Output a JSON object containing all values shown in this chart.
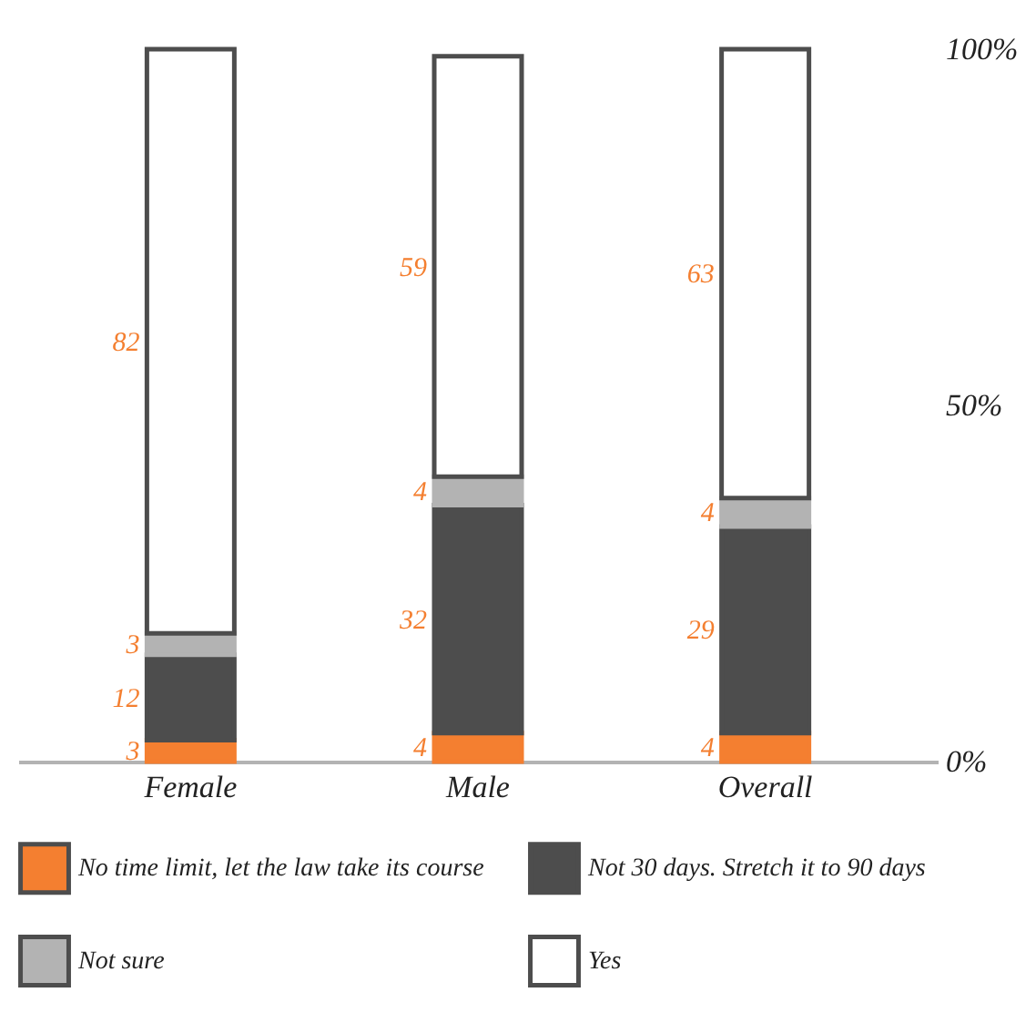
{
  "chart_data": {
    "type": "bar",
    "stacked": true,
    "categories": [
      "Female",
      "Male",
      "Overall"
    ],
    "series": [
      {
        "name": "No time limit, let the law take its course",
        "color": "#f47f30",
        "values": [
          3,
          4,
          4
        ]
      },
      {
        "name": "Not 30 days. Stretch it to 90 days",
        "color": "#4d4d4d",
        "values": [
          12,
          32,
          29
        ]
      },
      {
        "name": "Not sure",
        "color": "#b3b3b3",
        "values": [
          3,
          4,
          4
        ]
      },
      {
        "name": "Yes",
        "color": "#ffffff",
        "values": [
          82,
          59,
          63
        ]
      }
    ],
    "ylim": [
      0,
      100
    ],
    "yticks": [
      {
        "value": 0,
        "label": "0%"
      },
      {
        "value": 50,
        "label": "50%"
      },
      {
        "value": 100,
        "label": "100%"
      }
    ],
    "data_labels": true,
    "legend": "bottom",
    "grid": false
  }
}
